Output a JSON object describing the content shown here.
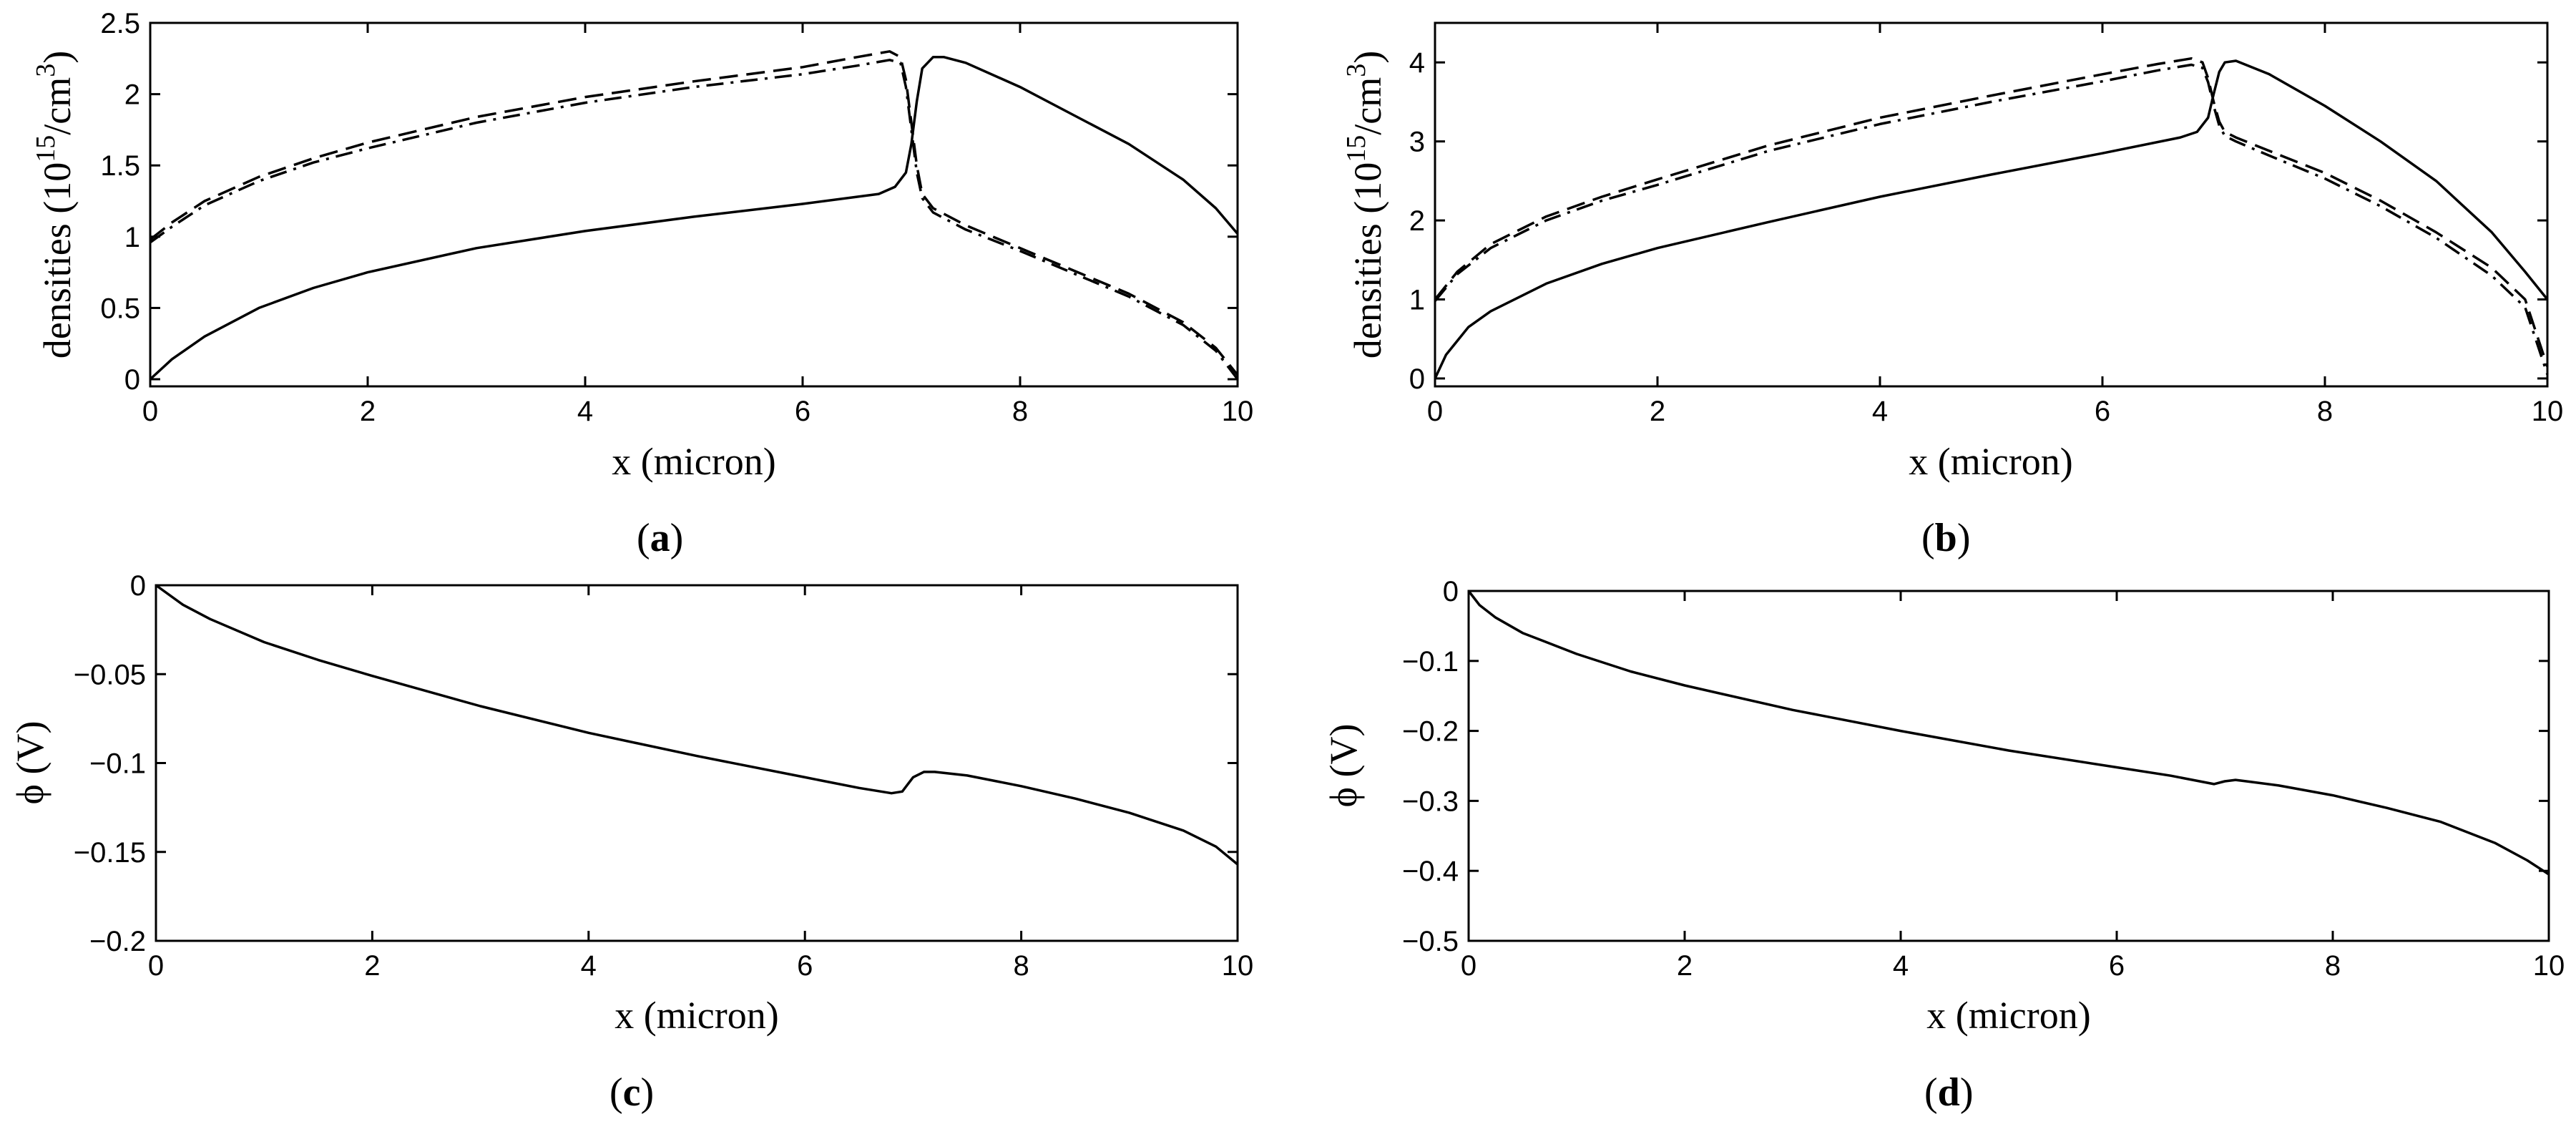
{
  "chart_data": [
    {
      "type": "line",
      "panel_label": "a",
      "xlabel": "x (micron)",
      "ylabel": {
        "base": "densities (10",
        "exp1": "15",
        "mid": "/cm",
        "exp2": "3",
        "end": ")"
      },
      "xlim": [
        0,
        10
      ],
      "ylim": [
        -0.05,
        2.5
      ],
      "xticks": [
        0,
        2,
        4,
        6,
        8,
        10
      ],
      "xtick_labels": [
        "0",
        "2",
        "4",
        "6",
        "8",
        "10"
      ],
      "yticks": [
        0,
        0.5,
        1,
        1.5,
        2,
        2.5
      ],
      "ytick_labels": [
        "0",
        "0.5",
        "1",
        "1.5",
        "2",
        "2.5"
      ],
      "series": [
        {
          "name": "solid",
          "style": "solid",
          "x": [
            0,
            0.2,
            0.5,
            1,
            1.5,
            2,
            3,
            4,
            5,
            6,
            6.7,
            6.85,
            6.95,
            7.0,
            7.05,
            7.1,
            7.2,
            7.3,
            7.5,
            8,
            8.5,
            9,
            9.5,
            9.8,
            10
          ],
          "y": [
            0,
            0.14,
            0.3,
            0.5,
            0.64,
            0.75,
            0.92,
            1.04,
            1.14,
            1.23,
            1.3,
            1.35,
            1.45,
            1.65,
            1.95,
            2.18,
            2.26,
            2.26,
            2.22,
            2.05,
            1.85,
            1.65,
            1.4,
            1.2,
            1.02
          ]
        },
        {
          "name": "dashed",
          "style": "dashed",
          "x": [
            0,
            0.2,
            0.5,
            1,
            1.5,
            2,
            3,
            4,
            5,
            6,
            6.5,
            6.8,
            6.9,
            6.95,
            7.0,
            7.05,
            7.1,
            7.2,
            7.5,
            8,
            8.5,
            9,
            9.5,
            9.8,
            10
          ],
          "y": [
            0.98,
            1.1,
            1.25,
            1.42,
            1.55,
            1.66,
            1.84,
            1.98,
            2.09,
            2.19,
            2.26,
            2.3,
            2.26,
            2.1,
            1.8,
            1.5,
            1.3,
            1.2,
            1.08,
            0.92,
            0.76,
            0.6,
            0.4,
            0.22,
            0.03
          ]
        },
        {
          "name": "dashdot",
          "style": "dashdot",
          "x": [
            0,
            0.2,
            0.5,
            1,
            1.5,
            2,
            3,
            4,
            5,
            6,
            6.5,
            6.8,
            6.9,
            6.95,
            7.0,
            7.05,
            7.1,
            7.2,
            7.5,
            8,
            8.5,
            9,
            9.5,
            9.8,
            10
          ],
          "y": [
            0.96,
            1.07,
            1.22,
            1.39,
            1.52,
            1.62,
            1.8,
            1.94,
            2.05,
            2.14,
            2.2,
            2.24,
            2.22,
            2.05,
            1.75,
            1.45,
            1.27,
            1.17,
            1.05,
            0.9,
            0.74,
            0.58,
            0.38,
            0.2,
            0.0
          ]
        }
      ]
    },
    {
      "type": "line",
      "panel_label": "b",
      "xlabel": "x (micron)",
      "ylabel": {
        "base": "densities (10",
        "exp1": "15",
        "mid": "/cm",
        "exp2": "3",
        "end": ")"
      },
      "xlim": [
        0,
        10
      ],
      "ylim": [
        -0.1,
        4.5
      ],
      "xticks": [
        0,
        2,
        4,
        6,
        8,
        10
      ],
      "xtick_labels": [
        "0",
        "2",
        "4",
        "6",
        "8",
        "10"
      ],
      "yticks": [
        0,
        1,
        2,
        3,
        4
      ],
      "ytick_labels": [
        "0",
        "1",
        "2",
        "3",
        "4"
      ],
      "series": [
        {
          "name": "solid",
          "style": "solid",
          "x": [
            0,
            0.1,
            0.3,
            0.5,
            1,
            1.5,
            2,
            3,
            4,
            5,
            6,
            6.7,
            6.85,
            6.95,
            7.0,
            7.05,
            7.1,
            7.2,
            7.5,
            8,
            8.5,
            9,
            9.5,
            9.8,
            10
          ],
          "y": [
            0,
            0.3,
            0.65,
            0.85,
            1.2,
            1.45,
            1.65,
            1.98,
            2.3,
            2.58,
            2.85,
            3.05,
            3.12,
            3.3,
            3.6,
            3.88,
            4.0,
            4.02,
            3.85,
            3.45,
            3.0,
            2.5,
            1.85,
            1.35,
            1.0
          ]
        },
        {
          "name": "dashed",
          "style": "dashed",
          "x": [
            0,
            0.2,
            0.5,
            1,
            1.5,
            2,
            3,
            4,
            5,
            6,
            6.5,
            6.8,
            6.9,
            6.95,
            7.0,
            7.05,
            7.1,
            7.2,
            7.5,
            8,
            8.5,
            9,
            9.5,
            9.8,
            10
          ],
          "y": [
            1.0,
            1.35,
            1.7,
            2.05,
            2.3,
            2.52,
            2.95,
            3.3,
            3.58,
            3.85,
            3.98,
            4.05,
            4.0,
            3.8,
            3.5,
            3.25,
            3.12,
            3.05,
            2.88,
            2.6,
            2.25,
            1.85,
            1.4,
            1.0,
            0.15
          ]
        },
        {
          "name": "dashdot",
          "style": "dashdot",
          "x": [
            0,
            0.2,
            0.5,
            1,
            1.5,
            2,
            3,
            4,
            5,
            6,
            6.5,
            6.8,
            6.9,
            6.95,
            7.0,
            7.05,
            7.1,
            7.2,
            7.5,
            8,
            8.5,
            9,
            9.5,
            9.8,
            10
          ],
          "y": [
            0.98,
            1.32,
            1.65,
            2.0,
            2.25,
            2.45,
            2.88,
            3.22,
            3.5,
            3.76,
            3.9,
            3.97,
            3.93,
            3.75,
            3.45,
            3.2,
            3.07,
            3.0,
            2.82,
            2.53,
            2.18,
            1.78,
            1.3,
            0.9,
            0.05
          ]
        }
      ]
    },
    {
      "type": "line",
      "panel_label": "c",
      "xlabel": "x (micron)",
      "ylabel": {
        "base": "ϕ (V)"
      },
      "xlim": [
        0,
        10
      ],
      "ylim": [
        -0.2,
        0
      ],
      "xticks": [
        0,
        2,
        4,
        6,
        8,
        10
      ],
      "xtick_labels": [
        "0",
        "2",
        "4",
        "6",
        "8",
        "10"
      ],
      "yticks": [
        -0.2,
        -0.15,
        -0.1,
        -0.05,
        0
      ],
      "ytick_labels": [
        "−0.2",
        "−0.15",
        "−0.1",
        "−0.05",
        "0"
      ],
      "series": [
        {
          "name": "phi",
          "style": "solid",
          "x": [
            0,
            0.25,
            0.5,
            1,
            1.5,
            2,
            3,
            4,
            5,
            6,
            6.5,
            6.8,
            6.9,
            7.0,
            7.1,
            7.2,
            7.5,
            8,
            8.5,
            9,
            9.5,
            9.8,
            10
          ],
          "y": [
            0,
            -0.011,
            -0.019,
            -0.032,
            -0.042,
            -0.051,
            -0.068,
            -0.083,
            -0.096,
            -0.108,
            -0.114,
            -0.117,
            -0.116,
            -0.108,
            -0.105,
            -0.105,
            -0.107,
            -0.113,
            -0.12,
            -0.128,
            -0.138,
            -0.147,
            -0.157
          ]
        }
      ]
    },
    {
      "type": "line",
      "panel_label": "d",
      "xlabel": "x (micron)",
      "ylabel": {
        "base": "ϕ (V)"
      },
      "xlim": [
        0,
        10
      ],
      "ylim": [
        -0.5,
        0
      ],
      "xticks": [
        0,
        2,
        4,
        6,
        8,
        10
      ],
      "xtick_labels": [
        "0",
        "2",
        "4",
        "6",
        "8",
        "10"
      ],
      "yticks": [
        -0.5,
        -0.4,
        -0.3,
        -0.2,
        -0.1,
        0
      ],
      "ytick_labels": [
        "−0.5",
        "−0.4",
        "−0.3",
        "−0.2",
        "−0.1",
        "0"
      ],
      "series": [
        {
          "name": "phi",
          "style": "solid",
          "x": [
            0,
            0.1,
            0.25,
            0.5,
            1,
            1.5,
            2,
            3,
            4,
            5,
            6,
            6.5,
            6.9,
            7.0,
            7.1,
            7.2,
            7.5,
            8,
            8.5,
            9,
            9.5,
            9.8,
            10
          ],
          "y": [
            0,
            -0.02,
            -0.038,
            -0.06,
            -0.09,
            -0.115,
            -0.135,
            -0.17,
            -0.2,
            -0.228,
            -0.252,
            -0.264,
            -0.276,
            -0.272,
            -0.27,
            -0.272,
            -0.278,
            -0.292,
            -0.31,
            -0.33,
            -0.36,
            -0.385,
            -0.405
          ]
        }
      ]
    }
  ]
}
